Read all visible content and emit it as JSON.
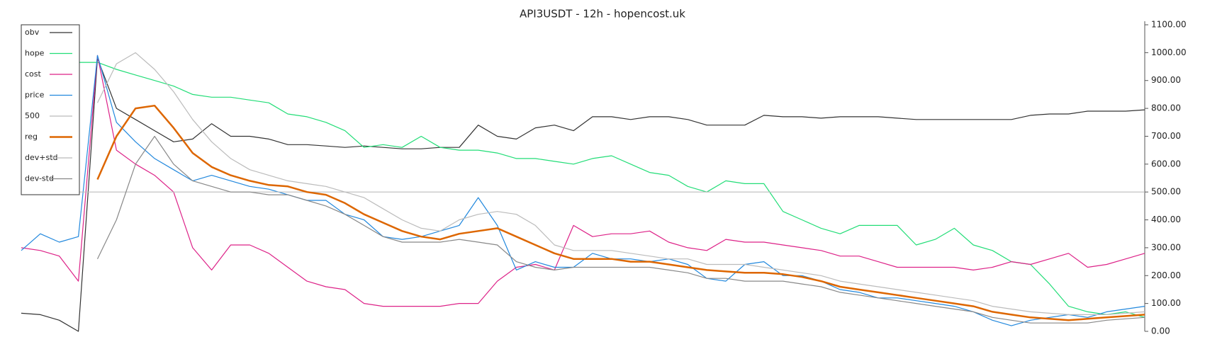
{
  "chart_data": {
    "type": "line",
    "title": "API3USDT - 12h - hopencost.uk",
    "ylim": [
      0,
      1100
    ],
    "yticks": [
      {
        "value": 0,
        "label": "0.00"
      },
      {
        "value": 100,
        "label": "100.00"
      },
      {
        "value": 200,
        "label": "200.00"
      },
      {
        "value": 300,
        "label": "300.00"
      },
      {
        "value": 400,
        "label": "400.00"
      },
      {
        "value": 500,
        "label": "500.00"
      },
      {
        "value": 600,
        "label": "600.00"
      },
      {
        "value": 700,
        "label": "700.00"
      },
      {
        "value": 800,
        "label": "800.00"
      },
      {
        "value": 900,
        "label": "900.00"
      },
      {
        "value": 1000,
        "label": "1000.00"
      },
      {
        "value": 1100,
        "label": "1100.00"
      }
    ],
    "legend": "top-left",
    "series": [
      {
        "name": "obv",
        "color": "#333333",
        "width": 1.2,
        "values": [
          65,
          60,
          40,
          0,
          980,
          800,
          760,
          720,
          680,
          690,
          745,
          700,
          700,
          690,
          670,
          670,
          665,
          660,
          665,
          660,
          655,
          655,
          660,
          660,
          740,
          700,
          690,
          730,
          740,
          720,
          770,
          770,
          760,
          770,
          770,
          760,
          740,
          740,
          740,
          775,
          770,
          770,
          765,
          770,
          770,
          770,
          765,
          760,
          760,
          760,
          760,
          760,
          760,
          775,
          780,
          780,
          790,
          790,
          790,
          795
        ]
      },
      {
        "name": "hope",
        "color": "#22dd77",
        "width": 1.2,
        "values": [
          null,
          null,
          null,
          965,
          965,
          940,
          920,
          900,
          880,
          850,
          840,
          840,
          830,
          820,
          780,
          770,
          750,
          720,
          660,
          670,
          660,
          700,
          660,
          650,
          650,
          640,
          620,
          620,
          610,
          600,
          620,
          630,
          600,
          570,
          560,
          520,
          500,
          540,
          530,
          530,
          430,
          400,
          370,
          350,
          380,
          380,
          380,
          310,
          330,
          370,
          310,
          290,
          250,
          240,
          170,
          90,
          70,
          60,
          70,
          50
        ]
      },
      {
        "name": "cost",
        "color": "#dd2288",
        "width": 1.2,
        "values": [
          300,
          290,
          270,
          180,
          990,
          650,
          600,
          560,
          500,
          300,
          220,
          310,
          310,
          280,
          230,
          180,
          160,
          150,
          100,
          90,
          90,
          90,
          90,
          100,
          100,
          180,
          230,
          240,
          220,
          380,
          340,
          350,
          350,
          360,
          320,
          300,
          290,
          330,
          320,
          320,
          310,
          300,
          290,
          270,
          270,
          250,
          230,
          230,
          230,
          230,
          220,
          230,
          250,
          240,
          260,
          280,
          230,
          240,
          260,
          280
        ]
      },
      {
        "name": "price",
        "color": "#2288dd",
        "width": 1.2,
        "values": [
          290,
          350,
          320,
          340,
          990,
          750,
          680,
          620,
          580,
          540,
          560,
          540,
          520,
          510,
          490,
          470,
          470,
          420,
          400,
          340,
          330,
          340,
          360,
          380,
          480,
          380,
          220,
          250,
          230,
          230,
          280,
          260,
          260,
          250,
          260,
          240,
          190,
          180,
          240,
          250,
          200,
          200,
          180,
          150,
          140,
          120,
          120,
          110,
          100,
          90,
          70,
          40,
          20,
          40,
          50,
          60,
          50,
          70,
          80,
          90
        ]
      },
      {
        "name": "500",
        "color": "#bbbbbb",
        "width": 1.2,
        "values": [
          500,
          500,
          500,
          500,
          500,
          500,
          500,
          500,
          500,
          500,
          500,
          500,
          500,
          500,
          500,
          500,
          500,
          500,
          500,
          500,
          500,
          500,
          500,
          500,
          500,
          500,
          500,
          500,
          500,
          500,
          500,
          500,
          500,
          500,
          500,
          500,
          500,
          500,
          500,
          500,
          500,
          500,
          500,
          500,
          500,
          500,
          500,
          500,
          500,
          500,
          500,
          500,
          500,
          500,
          500,
          500,
          500,
          500,
          500,
          500
        ]
      },
      {
        "name": "reg",
        "color": "#dd6600",
        "width": 2.5,
        "values": [
          null,
          null,
          null,
          null,
          545,
          700,
          800,
          810,
          730,
          640,
          590,
          560,
          540,
          525,
          520,
          500,
          490,
          460,
          420,
          390,
          360,
          340,
          330,
          350,
          360,
          370,
          340,
          310,
          280,
          260,
          260,
          260,
          250,
          250,
          240,
          230,
          220,
          215,
          210,
          210,
          205,
          195,
          180,
          160,
          150,
          140,
          130,
          120,
          110,
          100,
          90,
          70,
          60,
          50,
          45,
          40,
          45,
          50,
          55,
          60
        ]
      },
      {
        "name": "dev+std",
        "color": "#bbbbbb",
        "width": 1.2,
        "values": [
          null,
          null,
          null,
          null,
          820,
          960,
          1000,
          940,
          860,
          760,
          680,
          620,
          580,
          560,
          540,
          530,
          520,
          500,
          480,
          440,
          400,
          370,
          360,
          400,
          420,
          430,
          420,
          380,
          310,
          290,
          290,
          290,
          280,
          270,
          260,
          260,
          240,
          240,
          240,
          230,
          220,
          210,
          200,
          180,
          170,
          160,
          150,
          140,
          130,
          120,
          110,
          90,
          80,
          70,
          65,
          60,
          60,
          60,
          65,
          70
        ]
      },
      {
        "name": "dev-std",
        "color": "#888888",
        "width": 1.2,
        "values": [
          null,
          null,
          null,
          null,
          260,
          400,
          600,
          700,
          600,
          540,
          520,
          500,
          500,
          490,
          490,
          470,
          450,
          420,
          380,
          340,
          320,
          320,
          320,
          330,
          320,
          310,
          250,
          230,
          220,
          230,
          230,
          230,
          230,
          230,
          220,
          210,
          190,
          190,
          180,
          180,
          180,
          170,
          160,
          140,
          130,
          120,
          110,
          100,
          90,
          80,
          70,
          50,
          40,
          30,
          30,
          30,
          30,
          40,
          45,
          50
        ]
      }
    ]
  }
}
